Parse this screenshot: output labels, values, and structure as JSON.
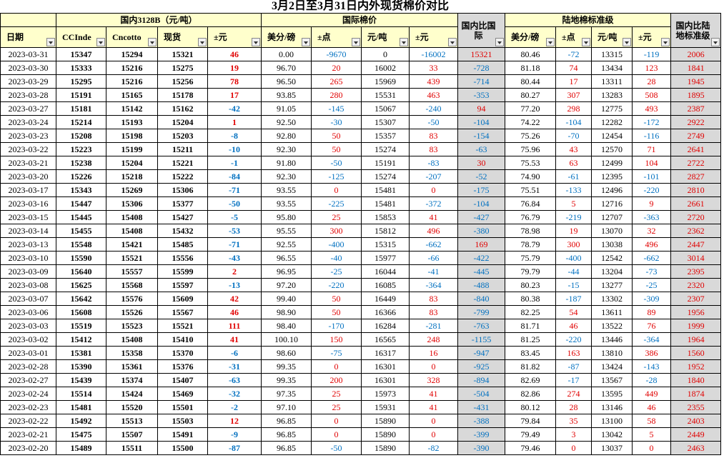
{
  "title": "3月2日至3月31日内外现货棉价对比",
  "table": {
    "group_headers": [
      "国内3128B（元/吨）",
      "国际棉价",
      "陆地棉标准级"
    ],
    "columns": [
      "日期",
      "CCInde",
      "Cncotto",
      "现货",
      "±元",
      "美分/磅",
      "±点",
      "元/吨",
      "±元",
      "国内比国际",
      "美分/磅",
      "±点",
      "元/吨",
      "±元",
      "国内比陆地标准级"
    ],
    "rows": [
      [
        "2023-03-31",
        "15347",
        "15294",
        "15321",
        "46",
        "0.00",
        "-9670",
        "0",
        "-16002",
        "15321",
        "80.46",
        "-72",
        "13315",
        "-119",
        "2006"
      ],
      [
        "2023-03-30",
        "15333",
        "15216",
        "15275",
        "19",
        "96.70",
        "20",
        "16002",
        "33",
        "-728",
        "81.18",
        "74",
        "13434",
        "123",
        "1841"
      ],
      [
        "2023-03-29",
        "15295",
        "15216",
        "15256",
        "78",
        "96.50",
        "265",
        "15969",
        "439",
        "-714",
        "80.44",
        "17",
        "13311",
        "28",
        "1945"
      ],
      [
        "2023-03-28",
        "15191",
        "15165",
        "15178",
        "17",
        "93.85",
        "280",
        "15531",
        "463",
        "-353",
        "80.27",
        "307",
        "13283",
        "508",
        "1895"
      ],
      [
        "2023-03-27",
        "15181",
        "15142",
        "15162",
        "-42",
        "91.05",
        "-145",
        "15067",
        "-240",
        "94",
        "77.20",
        "298",
        "12775",
        "493",
        "2387"
      ],
      [
        "2023-03-24",
        "15214",
        "15193",
        "15204",
        "1",
        "92.50",
        "-30",
        "15307",
        "-50",
        "-104",
        "74.22",
        "-104",
        "12282",
        "-172",
        "2922"
      ],
      [
        "2023-03-23",
        "15208",
        "15198",
        "15203",
        "-8",
        "92.80",
        "50",
        "15357",
        "83",
        "-154",
        "75.26",
        "-70",
        "12454",
        "-116",
        "2749"
      ],
      [
        "2023-03-22",
        "15223",
        "15199",
        "15211",
        "-10",
        "92.30",
        "50",
        "15274",
        "83",
        "-63",
        "75.96",
        "43",
        "12570",
        "71",
        "2641"
      ],
      [
        "2023-03-21",
        "15238",
        "15204",
        "15221",
        "-1",
        "91.80",
        "-50",
        "15191",
        "-83",
        "30",
        "75.53",
        "63",
        "12499",
        "104",
        "2722"
      ],
      [
        "2023-03-20",
        "15226",
        "15218",
        "15222",
        "-84",
        "92.30",
        "-125",
        "15274",
        "-207",
        "-52",
        "74.90",
        "-61",
        "12395",
        "-101",
        "2827"
      ],
      [
        "2023-03-17",
        "15343",
        "15269",
        "15306",
        "-71",
        "93.55",
        "0",
        "15481",
        "0",
        "-175",
        "75.51",
        "-133",
        "12496",
        "-220",
        "2810"
      ],
      [
        "2023-03-16",
        "15447",
        "15306",
        "15377",
        "-50",
        "93.55",
        "-225",
        "15481",
        "-372",
        "-104",
        "76.84",
        "5",
        "12716",
        "9",
        "2661"
      ],
      [
        "2023-03-15",
        "15445",
        "15408",
        "15427",
        "-5",
        "95.80",
        "25",
        "15853",
        "41",
        "-427",
        "76.79",
        "-219",
        "12707",
        "-363",
        "2720"
      ],
      [
        "2023-03-14",
        "15455",
        "15408",
        "15432",
        "-53",
        "95.55",
        "300",
        "15812",
        "496",
        "-380",
        "78.98",
        "19",
        "13070",
        "32",
        "2362"
      ],
      [
        "2023-03-13",
        "15548",
        "15421",
        "15485",
        "-71",
        "92.55",
        "-400",
        "15315",
        "-662",
        "169",
        "78.79",
        "300",
        "13038",
        "496",
        "2447"
      ],
      [
        "2023-03-10",
        "15590",
        "15521",
        "15556",
        "-43",
        "96.55",
        "-40",
        "15977",
        "-66",
        "-422",
        "75.79",
        "-400",
        "12542",
        "-662",
        "3014"
      ],
      [
        "2023-03-09",
        "15640",
        "15557",
        "15599",
        "2",
        "96.95",
        "-25",
        "16044",
        "-41",
        "-445",
        "79.79",
        "-44",
        "13204",
        "-73",
        "2395"
      ],
      [
        "2023-03-08",
        "15625",
        "15568",
        "15597",
        "-13",
        "97.20",
        "-220",
        "16085",
        "-364",
        "-488",
        "80.23",
        "-15",
        "13277",
        "-25",
        "2320"
      ],
      [
        "2023-03-07",
        "15642",
        "15576",
        "15609",
        "42",
        "99.40",
        "50",
        "16449",
        "83",
        "-840",
        "80.38",
        "-187",
        "13302",
        "-309",
        "2307"
      ],
      [
        "2023-03-06",
        "15608",
        "15526",
        "15567",
        "46",
        "98.90",
        "50",
        "16366",
        "83",
        "-799",
        "82.25",
        "54",
        "13611",
        "89",
        "1956"
      ],
      [
        "2023-03-03",
        "15519",
        "15523",
        "15521",
        "111",
        "98.40",
        "-170",
        "16284",
        "-281",
        "-763",
        "81.71",
        "46",
        "13522",
        "76",
        "1999"
      ],
      [
        "2023-03-02",
        "15412",
        "15408",
        "15410",
        "41",
        "100.10",
        "150",
        "16565",
        "248",
        "-1155",
        "81.25",
        "-220",
        "13446",
        "-364",
        "1964"
      ],
      [
        "2023-03-01",
        "15381",
        "15358",
        "15370",
        "-6",
        "98.60",
        "-75",
        "16317",
        "16",
        "-947",
        "83.45",
        "163",
        "13810",
        "386",
        "1560"
      ],
      [
        "2023-02-28",
        "15390",
        "15361",
        "15376",
        "-31",
        "99.35",
        "0",
        "16301",
        "0",
        "-925",
        "81.82",
        "-87",
        "13424",
        "-143",
        "1952"
      ],
      [
        "2023-02-27",
        "15439",
        "15374",
        "15407",
        "-63",
        "99.35",
        "200",
        "16301",
        "328",
        "-894",
        "82.69",
        "-17",
        "13567",
        "-28",
        "1840"
      ],
      [
        "2023-02-24",
        "15514",
        "15424",
        "15469",
        "-32",
        "97.35",
        "25",
        "15973",
        "41",
        "-504",
        "82.86",
        "274",
        "13595",
        "449",
        "1874"
      ],
      [
        "2023-02-23",
        "15481",
        "15520",
        "15501",
        "-2",
        "97.10",
        "25",
        "15931",
        "41",
        "-431",
        "80.12",
        "28",
        "13146",
        "46",
        "2355"
      ],
      [
        "2023-02-22",
        "15492",
        "15513",
        "15503",
        "12",
        "96.85",
        "0",
        "15890",
        "0",
        "-388",
        "79.84",
        "35",
        "13100",
        "58",
        "2403"
      ],
      [
        "2023-02-21",
        "15475",
        "15507",
        "15491",
        "-9",
        "96.85",
        "0",
        "15890",
        "0",
        "-399",
        "79.49",
        "3",
        "13042",
        "5",
        "2449"
      ],
      [
        "2023-02-20",
        "15489",
        "15511",
        "15500",
        "-87",
        "96.85",
        "-50",
        "15890",
        "-82",
        "-390",
        "79.46",
        "0",
        "13037",
        "0",
        "2463"
      ]
    ]
  }
}
